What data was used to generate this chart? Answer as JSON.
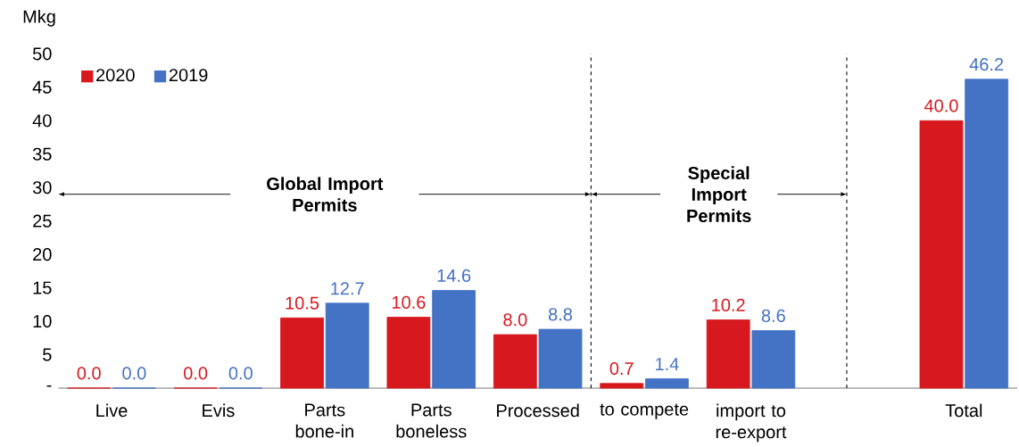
{
  "chart_data": {
    "type": "bar",
    "ylabel": "Mkg",
    "categories": [
      "Live",
      "Evis",
      "Parts bone-in",
      "Parts boneless",
      "Processed",
      "to compete",
      "import to re-export",
      null,
      "Total"
    ],
    "series": [
      {
        "name": "2020",
        "color": "#d7191f",
        "values": [
          0,
          0,
          10.5,
          10.6,
          8.0,
          0.7,
          10.2,
          null,
          40.0
        ],
        "value_labels": [
          "0.0",
          "0.0",
          "10.5",
          "10.6",
          "8.0",
          "0.7",
          "10.2",
          null,
          "40.0"
        ]
      },
      {
        "name": "2019",
        "color": "#4472c4",
        "values": [
          0,
          0,
          12.7,
          14.6,
          8.8,
          1.4,
          8.6,
          null,
          46.2
        ],
        "value_labels": [
          "0.0",
          "0.0",
          "12.7",
          "14.6",
          "8.8",
          "1.4",
          "8.6",
          null,
          "46.2"
        ]
      }
    ],
    "ylim": [
      0,
      50
    ],
    "yticks": [
      {
        "value": 0,
        "label": "-"
      },
      5,
      10,
      15,
      20,
      25,
      30,
      35,
      40,
      45,
      50
    ],
    "legend": "top left",
    "annotations": [
      "Global Import Permits",
      "Special Import Permits"
    ]
  }
}
